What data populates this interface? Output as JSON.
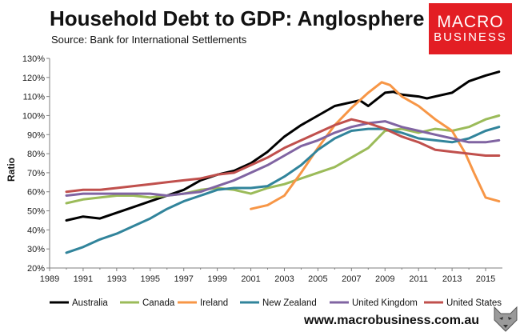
{
  "header": {
    "title": "Household Debt to GDP: Anglosphere",
    "subtitle": "Source: Bank for International Settlements"
  },
  "logo": {
    "line1": "MACRO",
    "line2": "BUSINESS",
    "color": "#e31e24"
  },
  "footer": {
    "url": "www.macrobusiness.com.au",
    "icon": "wolf-logo-icon"
  },
  "chart_data": {
    "type": "line",
    "title": "Household Debt to GDP: Anglosphere",
    "subtitle": "Source: Bank for International Settlements",
    "ylabel": "Ratio",
    "xlabel": "",
    "xlim": [
      1989,
      2016
    ],
    "ylim": [
      20,
      130
    ],
    "x_ticks": [
      1989,
      1991,
      1993,
      1995,
      1997,
      1999,
      2001,
      2003,
      2005,
      2007,
      2009,
      2011,
      2013,
      2015
    ],
    "x_tick_labels": [
      "1989",
      "1991",
      "1993",
      "1995",
      "1997",
      "1999",
      "2001",
      "2003",
      "2005",
      "2007",
      "2009",
      "2011",
      "2013",
      "2015"
    ],
    "y_ticks": [
      20,
      30,
      40,
      50,
      60,
      70,
      80,
      90,
      100,
      110,
      120,
      130
    ],
    "y_tick_labels": [
      "20%",
      "30%",
      "40%",
      "50%",
      "60%",
      "70%",
      "80%",
      "90%",
      "100%",
      "110%",
      "120%",
      "130%"
    ],
    "grid": false,
    "legend_position": "bottom",
    "series": [
      {
        "name": "Australia",
        "color": "#000000",
        "points": [
          [
            1990,
            45
          ],
          [
            1991,
            47
          ],
          [
            1992,
            46
          ],
          [
            1993,
            49
          ],
          [
            1994,
            52
          ],
          [
            1995,
            55
          ],
          [
            1996,
            58
          ],
          [
            1997,
            61
          ],
          [
            1998,
            66
          ],
          [
            1999,
            69
          ],
          [
            2000,
            71
          ],
          [
            2001,
            75
          ],
          [
            2002,
            81
          ],
          [
            2003,
            89
          ],
          [
            2004,
            95
          ],
          [
            2005,
            100
          ],
          [
            2006,
            105
          ],
          [
            2007,
            107
          ],
          [
            2007.5,
            108
          ],
          [
            2008,
            105
          ],
          [
            2009,
            112
          ],
          [
            2009.5,
            112.5
          ],
          [
            2010,
            111
          ],
          [
            2011,
            110
          ],
          [
            2011.5,
            109
          ],
          [
            2012,
            110
          ],
          [
            2013,
            112
          ],
          [
            2014,
            118
          ],
          [
            2015,
            121
          ],
          [
            2015.8,
            123
          ]
        ]
      },
      {
        "name": "Canada",
        "color": "#9bbb59",
        "points": [
          [
            1990,
            54
          ],
          [
            1991,
            56
          ],
          [
            1992,
            57
          ],
          [
            1993,
            58
          ],
          [
            1994,
            58
          ],
          [
            1995,
            57
          ],
          [
            1996,
            58
          ],
          [
            1997,
            59
          ],
          [
            1998,
            61
          ],
          [
            1999,
            62
          ],
          [
            2000,
            61
          ],
          [
            2001,
            59
          ],
          [
            2002,
            62
          ],
          [
            2003,
            64
          ],
          [
            2004,
            67
          ],
          [
            2005,
            70
          ],
          [
            2006,
            73
          ],
          [
            2007,
            78
          ],
          [
            2008,
            83
          ],
          [
            2009,
            92
          ],
          [
            2010,
            93
          ],
          [
            2011,
            91
          ],
          [
            2012,
            93
          ],
          [
            2013,
            92
          ],
          [
            2014,
            94
          ],
          [
            2015,
            98
          ],
          [
            2015.8,
            100
          ]
        ]
      },
      {
        "name": "Ireland",
        "color": "#f79646",
        "points": [
          [
            2001,
            51
          ],
          [
            2002,
            53
          ],
          [
            2003,
            58
          ],
          [
            2004,
            70
          ],
          [
            2005,
            83
          ],
          [
            2006,
            95
          ],
          [
            2007,
            104
          ],
          [
            2008,
            112
          ],
          [
            2008.8,
            117.5
          ],
          [
            2009.3,
            116
          ],
          [
            2010,
            110
          ],
          [
            2011,
            105
          ],
          [
            2012,
            98
          ],
          [
            2013,
            92
          ],
          [
            2013.8,
            80
          ],
          [
            2014.3,
            70
          ],
          [
            2015,
            57
          ],
          [
            2015.8,
            55
          ]
        ]
      },
      {
        "name": "New Zealand",
        "color": "#31849b",
        "points": [
          [
            1990,
            28
          ],
          [
            1991,
            31
          ],
          [
            1992,
            35
          ],
          [
            1993,
            38
          ],
          [
            1994,
            42
          ],
          [
            1995,
            46
          ],
          [
            1996,
            51
          ],
          [
            1997,
            55
          ],
          [
            1998,
            58
          ],
          [
            1999,
            61
          ],
          [
            2000,
            62
          ],
          [
            2001,
            62
          ],
          [
            2002,
            63
          ],
          [
            2003,
            68
          ],
          [
            2004,
            74
          ],
          [
            2005,
            82
          ],
          [
            2006,
            88
          ],
          [
            2007,
            92
          ],
          [
            2008,
            93
          ],
          [
            2009,
            93
          ],
          [
            2010,
            91
          ],
          [
            2011,
            88
          ],
          [
            2012,
            87
          ],
          [
            2013,
            86
          ],
          [
            2014,
            88
          ],
          [
            2015,
            92
          ],
          [
            2015.8,
            94
          ]
        ]
      },
      {
        "name": "United Kingdom",
        "color": "#8064a2",
        "points": [
          [
            1990,
            58
          ],
          [
            1991,
            59
          ],
          [
            1992,
            59
          ],
          [
            1993,
            59
          ],
          [
            1994,
            59
          ],
          [
            1995,
            59
          ],
          [
            1996,
            58
          ],
          [
            1997,
            59
          ],
          [
            1998,
            60
          ],
          [
            1999,
            63
          ],
          [
            2000,
            66
          ],
          [
            2001,
            70
          ],
          [
            2002,
            74
          ],
          [
            2003,
            79
          ],
          [
            2004,
            84
          ],
          [
            2005,
            87
          ],
          [
            2006,
            91
          ],
          [
            2007,
            94
          ],
          [
            2008,
            96
          ],
          [
            2009,
            97
          ],
          [
            2010,
            94
          ],
          [
            2011,
            92
          ],
          [
            2012,
            90
          ],
          [
            2013,
            88
          ],
          [
            2014,
            86
          ],
          [
            2015,
            86
          ],
          [
            2015.8,
            87
          ]
        ]
      },
      {
        "name": "United States",
        "color": "#c0504d",
        "points": [
          [
            1990,
            60
          ],
          [
            1991,
            61
          ],
          [
            1992,
            61
          ],
          [
            1993,
            62
          ],
          [
            1994,
            63
          ],
          [
            1995,
            64
          ],
          [
            1996,
            65
          ],
          [
            1997,
            66
          ],
          [
            1998,
            67
          ],
          [
            1999,
            69
          ],
          [
            2000,
            70
          ],
          [
            2001,
            74
          ],
          [
            2002,
            78
          ],
          [
            2003,
            83
          ],
          [
            2004,
            87
          ],
          [
            2005,
            91
          ],
          [
            2006,
            95
          ],
          [
            2007,
            98
          ],
          [
            2008,
            96
          ],
          [
            2009,
            93
          ],
          [
            2010,
            89
          ],
          [
            2011,
            86
          ],
          [
            2012,
            82
          ],
          [
            2013,
            81
          ],
          [
            2014,
            80
          ],
          [
            2015,
            79
          ],
          [
            2015.8,
            79
          ]
        ]
      }
    ]
  }
}
